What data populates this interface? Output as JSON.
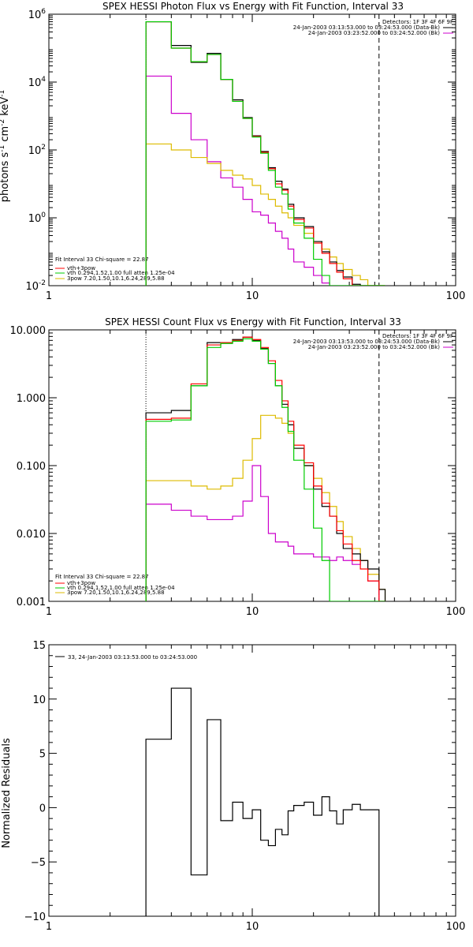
{
  "chart_data": [
    {
      "type": "line",
      "title": "SPEX HESSI Photon Flux vs Energy with Fit Function, Interval 33",
      "ylabel": "photons s^-1 cm^-2 keV^-1",
      "ylabel_parts": [
        "photons s",
        "-1",
        " cm",
        "-2",
        " keV",
        "-1"
      ],
      "xlabel": "",
      "xscale": "log",
      "yscale": "log",
      "xlim": [
        1,
        100
      ],
      "ylim": [
        0.01,
        1000000
      ],
      "x_ticks": [
        {
          "v": 1,
          "label": "1"
        },
        {
          "v": 10,
          "label": "10"
        },
        {
          "v": 100,
          "label": "100"
        }
      ],
      "y_ticks": [
        {
          "v": 0.01,
          "base": "10",
          "exp": "-2"
        },
        {
          "v": 1,
          "base": "10",
          "exp": "0"
        },
        {
          "v": 100,
          "base": "10",
          "exp": "2"
        },
        {
          "v": 10000,
          "base": "10",
          "exp": "4"
        },
        {
          "v": 1000000,
          "base": "10",
          "exp": "6"
        }
      ],
      "vlines": [
        {
          "x": 3,
          "style": "dotted"
        },
        {
          "x": 42,
          "style": "dashed"
        }
      ],
      "detectors": "Detectors: 1F 3F 4F 6F 9F",
      "time_entries": [
        {
          "text": "24-Jan-2003 03:13:53.000 to 03:24:53.000 (Data-Bk)",
          "color": "#000000"
        },
        {
          "text": "24-Jan-2003 03:23:52.000 to 03:24:52.000 (Bk)",
          "color": "#cc00cc"
        }
      ],
      "legend_header": "Fit Interval 33   Chi-square = 22.87",
      "legend": [
        {
          "label": "vth+3pow",
          "color": "#ff0000"
        },
        {
          "label": "vth 0.294,1.52,1.00  full atten 1.25e-04",
          "color": "#00cc00"
        },
        {
          "label": "3pow 7.20,1.50,10.1,6.24,289,5.88",
          "color": "#ddbb00"
        }
      ],
      "bin_edges": [
        3,
        4,
        5,
        6,
        7,
        8,
        9,
        10,
        11,
        12,
        13,
        14,
        15,
        16,
        18,
        20,
        22,
        24,
        26,
        28,
        31,
        34,
        37,
        42,
        45
      ],
      "series": [
        {
          "name": "Data-Bk",
          "color": "#000000",
          "values": [
            600000,
            120000,
            38000,
            70000,
            12000,
            3000,
            900,
            260,
            90,
            30,
            12,
            7,
            2.5,
            1,
            0.55,
            0.2,
            0.1,
            0.05,
            0.028,
            0.018,
            0.011,
            0.01,
            0.01,
            0.01
          ]
        },
        {
          "name": "vth+3pow",
          "color": "#ff0000",
          "values": [
            600000,
            100000,
            40000,
            65000,
            12000,
            2700,
            850,
            250,
            85,
            28,
            10,
            6.5,
            2.2,
            0.9,
            0.5,
            0.18,
            0.09,
            0.045,
            0.025,
            0.016,
            0.01,
            0.01,
            0.01,
            0.01
          ]
        },
        {
          "name": "vth",
          "color": "#00cc00",
          "values": [
            600000,
            100000,
            40000,
            65000,
            12000,
            2700,
            850,
            240,
            80,
            25,
            8,
            5,
            1.8,
            0.7,
            0.25,
            0.06,
            0.02,
            0.01,
            0.01,
            0.01,
            0.01,
            0.01,
            0.01,
            0.01
          ]
        },
        {
          "name": "3pow",
          "color": "#ddbb00",
          "values": [
            150,
            100,
            60,
            40,
            25,
            18,
            14,
            9,
            5,
            3.5,
            2.2,
            1.4,
            1,
            0.6,
            0.35,
            0.2,
            0.12,
            0.07,
            0.045,
            0.03,
            0.02,
            0.015,
            0.01,
            0.01
          ]
        },
        {
          "name": "Bk",
          "color": "#cc00cc",
          "values": [
            15000,
            1200,
            200,
            45,
            15,
            8,
            3.5,
            1.5,
            1.2,
            0.7,
            0.4,
            0.25,
            0.12,
            0.05,
            0.035,
            0.02,
            0.012,
            0.01,
            0.01,
            0.01,
            0.01,
            0.01,
            0.01,
            0.01
          ]
        }
      ]
    },
    {
      "type": "line",
      "title": "SPEX HESSI Count Flux vs Energy with Fit Function, Interval 33",
      "ylabel": "",
      "xlabel": "",
      "xscale": "log",
      "yscale": "log",
      "xlim": [
        1,
        100
      ],
      "ylim": [
        0.001,
        10
      ],
      "x_ticks": [
        {
          "v": 1,
          "label": "1"
        },
        {
          "v": 10,
          "label": "10"
        },
        {
          "v": 100,
          "label": "100"
        }
      ],
      "y_ticks": [
        {
          "v": 0.001,
          "label": "0.001"
        },
        {
          "v": 0.01,
          "label": "0.010"
        },
        {
          "v": 0.1,
          "label": "0.100"
        },
        {
          "v": 1,
          "label": "1.000"
        },
        {
          "v": 10,
          "label": "10.000"
        }
      ],
      "vlines": [
        {
          "x": 3,
          "style": "dotted"
        },
        {
          "x": 42,
          "style": "dashed"
        }
      ],
      "detectors": "Detectors: 1F 3F 4F 6F 9F",
      "time_entries": [
        {
          "text": "24-Jan-2003 03:13:53.000 to 03:24:53.000 (Data-Bk)",
          "color": "#000000"
        },
        {
          "text": "24-Jan-2003 03:23:52.000 to 03:24:52.000 (Bk)",
          "color": "#cc00cc"
        }
      ],
      "legend_header": "Fit Interval 33   Chi-square = 22.87",
      "legend": [
        {
          "label": "vth+3pow",
          "color": "#ff0000"
        },
        {
          "label": "vth 0.294,1.52,1.00  full atten 1.25e-04",
          "color": "#00cc00"
        },
        {
          "label": "3pow 7.20,1.50,10.1,6.24,289,5.88",
          "color": "#ddbb00"
        }
      ],
      "bin_edges": [
        3,
        4,
        5,
        6,
        7,
        8,
        9,
        10,
        11,
        12,
        13,
        14,
        15,
        16,
        18,
        20,
        22,
        24,
        26,
        28,
        31,
        34,
        37,
        42,
        45
      ],
      "series": [
        {
          "name": "Data-Bk",
          "color": "#000000",
          "values": [
            0.6,
            0.65,
            1.5,
            6.5,
            6.5,
            7.2,
            7.8,
            7.0,
            5.3,
            3.2,
            1.5,
            0.8,
            0.4,
            0.18,
            0.1,
            0.045,
            0.025,
            0.018,
            0.01,
            0.006,
            0.005,
            0.004,
            0.003,
            0.0015
          ]
        },
        {
          "name": "vth+3pow",
          "color": "#ff0000",
          "values": [
            0.48,
            0.5,
            1.6,
            6.0,
            6.5,
            7.0,
            7.8,
            7.2,
            5.5,
            3.5,
            1.8,
            0.9,
            0.45,
            0.2,
            0.11,
            0.05,
            0.028,
            0.018,
            0.011,
            0.007,
            0.004,
            0.003,
            0.002,
            0.001
          ]
        },
        {
          "name": "vth",
          "color": "#00cc00",
          "values": [
            0.45,
            0.47,
            1.5,
            5.5,
            6.3,
            6.8,
            7.4,
            6.8,
            5.2,
            3.2,
            1.5,
            0.72,
            0.32,
            0.12,
            0.045,
            0.012,
            0.004,
            0.001,
            0.001,
            0.001,
            0.001,
            0.001,
            0.001,
            0.001
          ]
        },
        {
          "name": "3pow",
          "color": "#ddbb00",
          "values": [
            0.06,
            0.06,
            0.05,
            0.045,
            0.05,
            0.065,
            0.12,
            0.25,
            0.55,
            0.55,
            0.5,
            0.42,
            0.3,
            0.18,
            0.1,
            0.065,
            0.04,
            0.025,
            0.015,
            0.009,
            0.006,
            0.004,
            0.0025,
            0.0015
          ]
        },
        {
          "name": "Bk",
          "color": "#cc00cc",
          "values": [
            0.027,
            0.022,
            0.018,
            0.016,
            0.016,
            0.018,
            0.03,
            0.1,
            0.035,
            0.01,
            0.0075,
            0.0075,
            0.0065,
            0.005,
            0.005,
            0.0045,
            0.0045,
            0.004,
            0.0045,
            0.004,
            0.0035,
            0.004,
            0.002,
            0.001
          ]
        }
      ]
    },
    {
      "type": "line",
      "title": "",
      "ylabel": "Normalized Residuals",
      "xlabel": "",
      "xscale": "log",
      "yscale": "linear",
      "xlim": [
        1,
        100
      ],
      "ylim": [
        -10,
        15
      ],
      "x_ticks": [
        {
          "v": 1,
          "label": "1"
        },
        {
          "v": 10,
          "label": "10"
        },
        {
          "v": 100,
          "label": "100"
        }
      ],
      "y_ticks": [
        {
          "v": -10,
          "label": "−10"
        },
        {
          "v": -5,
          "label": "−5"
        },
        {
          "v": 0,
          "label": "0"
        },
        {
          "v": 5,
          "label": "5"
        },
        {
          "v": 10,
          "label": "10"
        },
        {
          "v": 15,
          "label": "15"
        }
      ],
      "legend": [
        {
          "label": "33, 24-Jan-2003 03:13:53.000 to 03:24:53.000",
          "color": "#000000"
        }
      ],
      "bin_edges": [
        3,
        4,
        5,
        6,
        7,
        8,
        9,
        10,
        11,
        12,
        13,
        14,
        15,
        16,
        18,
        20,
        22,
        24,
        26,
        28,
        31,
        34,
        37,
        42
      ],
      "series": [
        {
          "name": "33",
          "color": "#000000",
          "values": [
            6.3,
            11.0,
            -6.2,
            8.1,
            -1.2,
            0.5,
            -1.0,
            -0.2,
            -3.0,
            -3.5,
            -2.0,
            -2.5,
            -0.3,
            0.2,
            0.5,
            -0.7,
            1.0,
            -0.3,
            -1.5,
            -0.2,
            0.3,
            -0.2,
            -0.2
          ]
        }
      ]
    }
  ]
}
